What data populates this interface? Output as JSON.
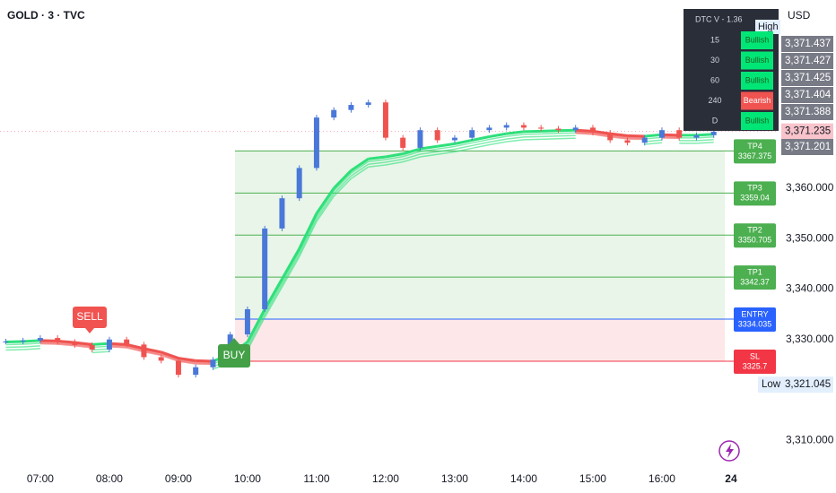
{
  "header": {
    "title": "GOLD · 3 · TVC",
    "currency": "USD"
  },
  "chart_data": {
    "type": "candlestick",
    "x": [
      390,
      405,
      420,
      435,
      450,
      465,
      480,
      495,
      510,
      525,
      540,
      555,
      570,
      585,
      600,
      615,
      630,
      645,
      660,
      675,
      690,
      705,
      720,
      735,
      750,
      765,
      780,
      795,
      810,
      825,
      840,
      855,
      870,
      885,
      900,
      915,
      930,
      945,
      960,
      975,
      990,
      1005
    ],
    "close": [
      3329.6,
      3329.8,
      3330.3,
      3329.5,
      3328.9,
      3328.0,
      3330.0,
      3329.0,
      3326.5,
      3325.8,
      3323.0,
      3324.5,
      3326.0,
      3331.0,
      3336.0,
      3352.0,
      3358.0,
      3364.0,
      3374.0,
      3375.5,
      3376.5,
      3377.0,
      3370.0,
      3368.0,
      3371.5,
      3369.5,
      3370.0,
      3371.5,
      3372.0,
      3372.5,
      3372.0,
      3371.8,
      3371.5,
      3372.0,
      3371.0,
      3369.5,
      3369.0,
      3370.0,
      3371.5,
      3370.0,
      3370.5,
      3371.2
    ],
    "ribbon": [
      3329.5,
      3329.6,
      3329.8,
      3329.7,
      3329.4,
      3329.0,
      3329.2,
      3329.0,
      3328.2,
      3327.5,
      3326.3,
      3325.8,
      3325.7,
      3327.0,
      3329.5,
      3336,
      3342,
      3348,
      3355,
      3360,
      3363.5,
      3365.8,
      3366.2,
      3366.8,
      3367.8,
      3368.3,
      3368.8,
      3369.5,
      3370.2,
      3370.8,
      3371.2,
      3371.3,
      3371.4,
      3371.5,
      3371.3,
      3370.8,
      3370.4,
      3370.3,
      3370.6,
      3370.5,
      3370.5,
      3370.7
    ],
    "xlim": [
      385,
      1059
    ],
    "ylim": [
      3304.9,
      3397.3
    ],
    "xticks": [
      {
        "value": 420,
        "label": "07:00"
      },
      {
        "value": 480,
        "label": "08:00"
      },
      {
        "value": 540,
        "label": "09:00"
      },
      {
        "value": 600,
        "label": "10:00"
      },
      {
        "value": 660,
        "label": "11:00"
      },
      {
        "value": 720,
        "label": "12:00"
      },
      {
        "value": 780,
        "label": "13:00"
      },
      {
        "value": 840,
        "label": "14:00"
      },
      {
        "value": 900,
        "label": "15:00"
      },
      {
        "value": 960,
        "label": "16:00"
      },
      {
        "value": 1020,
        "label": "24"
      }
    ],
    "yticks": [
      {
        "value": 3360,
        "label": "3,360.000"
      },
      {
        "value": 3350,
        "label": "3,350.000"
      },
      {
        "value": 3340,
        "label": "3,340.000"
      },
      {
        "value": 3330,
        "label": "3,330.000"
      },
      {
        "value": 3310,
        "label": "3,310.000"
      }
    ],
    "levels": [
      {
        "name": "TP4",
        "value": 3367.375,
        "color": "#4caf50"
      },
      {
        "name": "TP3",
        "value": 3359.04,
        "color": "#4caf50"
      },
      {
        "name": "TP2",
        "value": 3350.705,
        "color": "#4caf50"
      },
      {
        "name": "TP1",
        "value": 3342.37,
        "color": "#4caf50"
      },
      {
        "name": "ENTRY",
        "value": 3334.035,
        "color": "#2962ff"
      },
      {
        "name": "SL",
        "value": 3325.7,
        "color": "#f23645"
      }
    ],
    "last_price": {
      "value": 3371.235,
      "label": "3,371.235"
    },
    "low": {
      "name": "Low",
      "value": 3321.045,
      "label": "3,321.045"
    },
    "price_tags": [
      {
        "value": 3371.437,
        "label": "3,371.437"
      },
      {
        "value": 3371.427,
        "label": "3,371.427"
      },
      {
        "value": 3371.425,
        "label": "3,371.425"
      },
      {
        "value": 3371.404,
        "label": "3,371.404"
      },
      {
        "value": 3371.388,
        "label": "3,371.388"
      }
    ],
    "extra_tag": {
      "value": 3371.201,
      "label": "3,371.201"
    },
    "signals": {
      "sell": "SELL",
      "buy": "BUY"
    }
  },
  "panel": {
    "title": "DTC V - 1.36",
    "high": "High",
    "rows": [
      [
        "15",
        "Bullish"
      ],
      [
        "30",
        "Bullish"
      ],
      [
        "60",
        "Bullish"
      ],
      [
        "240",
        "Bearish"
      ],
      [
        "D",
        "Bullish"
      ]
    ]
  }
}
